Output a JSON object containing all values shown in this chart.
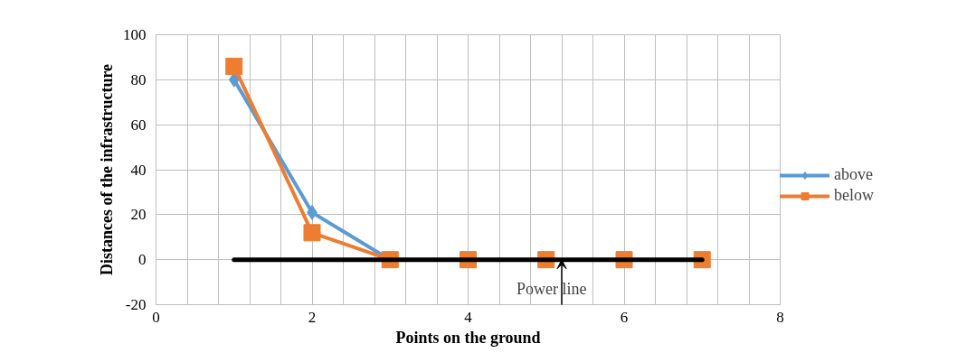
{
  "chart_data": {
    "type": "line",
    "xlabel": "Points on the ground",
    "ylabel": "Distances of the infrastructure",
    "x": [
      1,
      2,
      3,
      4,
      5,
      6,
      7
    ],
    "series": [
      {
        "name": "above",
        "color": "#5b9bd5",
        "values": [
          80,
          21,
          0,
          0,
          0,
          null,
          null
        ],
        "marker": "diamond"
      },
      {
        "name": "below",
        "color": "#ed7d31",
        "values": [
          86,
          12,
          0,
          0,
          0,
          0,
          0
        ],
        "marker": "square"
      },
      {
        "color": "#000000",
        "values": [
          0,
          0,
          0,
          0,
          0,
          0,
          0
        ],
        "marker": "none"
      }
    ],
    "xlim": [
      0,
      8
    ],
    "ylim": [
      -20,
      100
    ],
    "xticks": [
      0,
      {
        "value": 0.4,
        "label": null
      },
      {
        "value": 0.8,
        "label": null
      },
      {
        "value": 1.2,
        "label": null
      },
      {
        "value": 1.6,
        "label": null
      },
      2,
      {
        "value": 2.4,
        "label": null
      },
      {
        "value": 2.8,
        "label": null
      },
      {
        "value": 3.2,
        "label": null
      },
      {
        "value": 3.6,
        "label": null
      },
      4,
      {
        "value": 4.4,
        "label": null
      },
      {
        "value": 4.8,
        "label": null
      },
      {
        "value": 5.2,
        "label": null
      },
      {
        "value": 5.6,
        "label": null
      },
      6,
      {
        "value": 6.4,
        "label": null
      },
      {
        "value": 6.8,
        "label": null
      },
      {
        "value": 7.2,
        "label": null
      },
      {
        "value": 7.6,
        "label": null
      },
      8
    ],
    "yticks": [
      -20,
      0,
      20,
      40,
      60,
      80,
      100
    ],
    "grid": true,
    "legend": "right",
    "line_style": "solid",
    "annotations": [
      {
        "text": "Power line",
        "x": 5.2,
        "y": 0
      }
    ]
  }
}
